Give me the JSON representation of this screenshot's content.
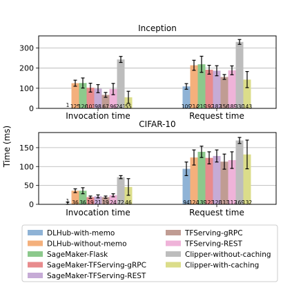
{
  "figure": {
    "shared_ylabel": "Time (ms)",
    "series_colors": [
      "#8fb3d6",
      "#f4b07c",
      "#8cc98c",
      "#e88b8d",
      "#c6abd6",
      "#c09c93",
      "#efb3d9",
      "#bdbdbd",
      "#dbdd8a"
    ]
  },
  "chart_data": [
    {
      "type": "bar",
      "title": "Inception",
      "categories": [
        "Invocation time",
        "Request time"
      ],
      "ylim": [
        0,
        360
      ],
      "yticks": [
        0,
        100,
        200,
        300
      ],
      "grid": "y",
      "series": [
        {
          "name": "DLHub-with-memo",
          "values": [
            1,
            109
          ],
          "errors": [
            0,
            14
          ],
          "labels": [
            "1",
            "109"
          ]
        },
        {
          "name": "DLHub-without-memo",
          "values": [
            125,
            214
          ],
          "errors": [
            15,
            25
          ],
          "labels": [
            "125",
            "214"
          ]
        },
        {
          "name": "SageMaker-Flask",
          "values": [
            126,
            219
          ],
          "errors": [
            25,
            40
          ],
          "labels": [
            "126",
            "219"
          ]
        },
        {
          "name": "SageMaker-TFServing-gRPC",
          "values": [
            103,
            192
          ],
          "errors": [
            22,
            22
          ],
          "labels": [
            "103",
            "192"
          ]
        },
        {
          "name": "SageMaker-TFServing-REST",
          "values": [
            98,
            187
          ],
          "errors": [
            20,
            25
          ],
          "labels": [
            "98",
            "187"
          ]
        },
        {
          "name": "TFServing-gRPC",
          "values": [
            67,
            156
          ],
          "errors": [
            12,
            12
          ],
          "labels": [
            "67",
            "156"
          ]
        },
        {
          "name": "TFServing-REST",
          "values": [
            96,
            189
          ],
          "errors": [
            28,
            22
          ],
          "labels": [
            "96",
            "189"
          ]
        },
        {
          "name": "Clipper-without-caching",
          "values": [
            243,
            330
          ],
          "errors": [
            15,
            12
          ],
          "labels": [
            "243",
            "330"
          ]
        },
        {
          "name": "Clipper-with-caching",
          "values": [
            55,
            143
          ],
          "errors": [
            30,
            40
          ],
          "labels": [
            "55",
            "143"
          ]
        }
      ]
    },
    {
      "type": "bar",
      "title": "CIFAR-10",
      "categories": [
        "Invocation time",
        "Request time"
      ],
      "ylim": [
        0,
        190
      ],
      "yticks": [
        0,
        50,
        100,
        150
      ],
      "grid": "y",
      "series": [
        {
          "name": "DLHub-with-memo",
          "values": [
            1,
            94
          ],
          "errors": [
            5,
            18
          ],
          "labels": [
            "1",
            "94"
          ]
        },
        {
          "name": "DLHub-without-memo",
          "values": [
            36,
            124
          ],
          "errors": [
            5,
            20
          ],
          "labels": [
            "36",
            "124"
          ]
        },
        {
          "name": "SageMaker-Flask",
          "values": [
            36,
            139
          ],
          "errors": [
            8,
            15
          ],
          "labels": [
            "36",
            "139"
          ]
        },
        {
          "name": "SageMaker-TFServing-gRPC",
          "values": [
            19,
            123
          ],
          "errors": [
            3,
            16
          ],
          "labels": [
            "19",
            "123"
          ]
        },
        {
          "name": "SageMaker-TFServing-REST",
          "values": [
            21,
            128
          ],
          "errors": [
            4,
            16
          ],
          "labels": [
            "21",
            "128"
          ]
        },
        {
          "name": "TFServing-gRPC",
          "values": [
            19,
            113
          ],
          "errors": [
            3,
            20
          ],
          "labels": [
            "19",
            "113"
          ]
        },
        {
          "name": "TFServing-REST",
          "values": [
            24,
            117
          ],
          "errors": [
            4,
            22
          ],
          "labels": [
            "24",
            "117"
          ]
        },
        {
          "name": "Clipper-without-caching",
          "values": [
            72,
            169
          ],
          "errors": [
            4,
            8
          ],
          "labels": [
            "72",
            "169"
          ]
        },
        {
          "name": "Clipper-with-caching",
          "values": [
            46,
            132
          ],
          "errors": [
            22,
            38
          ],
          "labels": [
            "46",
            "132"
          ]
        }
      ]
    }
  ],
  "legend": {
    "placement": "bottom",
    "items": [
      "DLHub-with-memo",
      "DLHub-without-memo",
      "SageMaker-Flask",
      "SageMaker-TFServing-gRPC",
      "SageMaker-TFServing-REST",
      "TFServing-gRPC",
      "TFServing-REST",
      "Clipper-without-caching",
      "Clipper-with-caching"
    ]
  }
}
